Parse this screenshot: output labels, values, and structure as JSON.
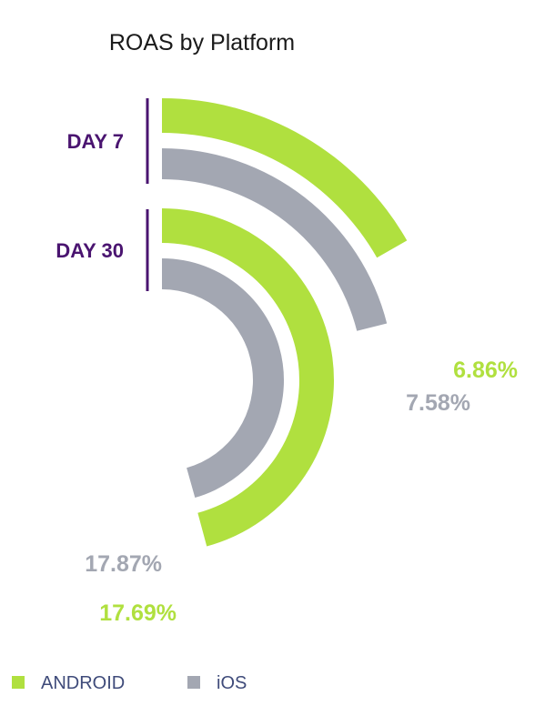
{
  "colors": {
    "android": "#b0e03f",
    "ios": "#a3a7b2",
    "group_label": "#4a1470",
    "legend_text": "#3f4b7a"
  },
  "chart_data": {
    "type": "radial-bar",
    "title": "ROAS by Platform",
    "groups": [
      {
        "name": "DAY 7",
        "series": [
          {
            "name": "ANDROID",
            "value": 6.86,
            "label": "6.86%"
          },
          {
            "name": "iOS",
            "value": 7.58,
            "label": "7.58%"
          }
        ]
      },
      {
        "name": "DAY 30",
        "series": [
          {
            "name": "ANDROID",
            "value": 17.69,
            "label": "17.69%"
          },
          {
            "name": "iOS",
            "value": 17.87,
            "label": "17.87%"
          }
        ]
      }
    ],
    "legend": {
      "placement": "bottom-left",
      "items": [
        {
          "name": "ANDROID",
          "color": "#b0e03f"
        },
        {
          "name": "iOS",
          "color": "#a3a7b2"
        }
      ]
    },
    "grid": false
  }
}
